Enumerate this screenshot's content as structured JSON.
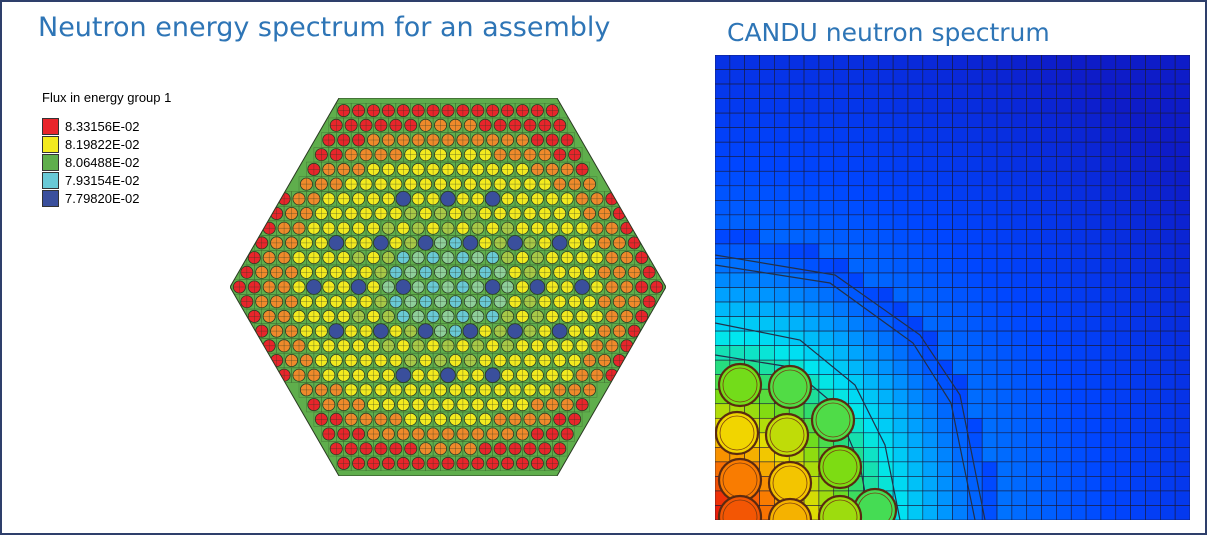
{
  "titles": {
    "left": "Neutron energy spectrum for an assembly",
    "right": "CANDU neutron spectrum"
  },
  "legend": {
    "title": "Flux in energy group   1",
    "items": [
      {
        "label": "8.33156E-02",
        "color": "#e8252b"
      },
      {
        "label": "8.19822E-02",
        "color": "#f3ea1f"
      },
      {
        "label": "8.06488E-02",
        "color": "#5fae4c"
      },
      {
        "label": "7.93154E-02",
        "color": "#69c9d6"
      },
      {
        "label": "7.79820E-02",
        "color": "#3a4f9c"
      }
    ]
  },
  "colors": {
    "frame": "#2e3f6b",
    "title": "#2e75b6",
    "assembly_background": "#5fae4c",
    "guide_tube": "#3a4f9c"
  }
}
